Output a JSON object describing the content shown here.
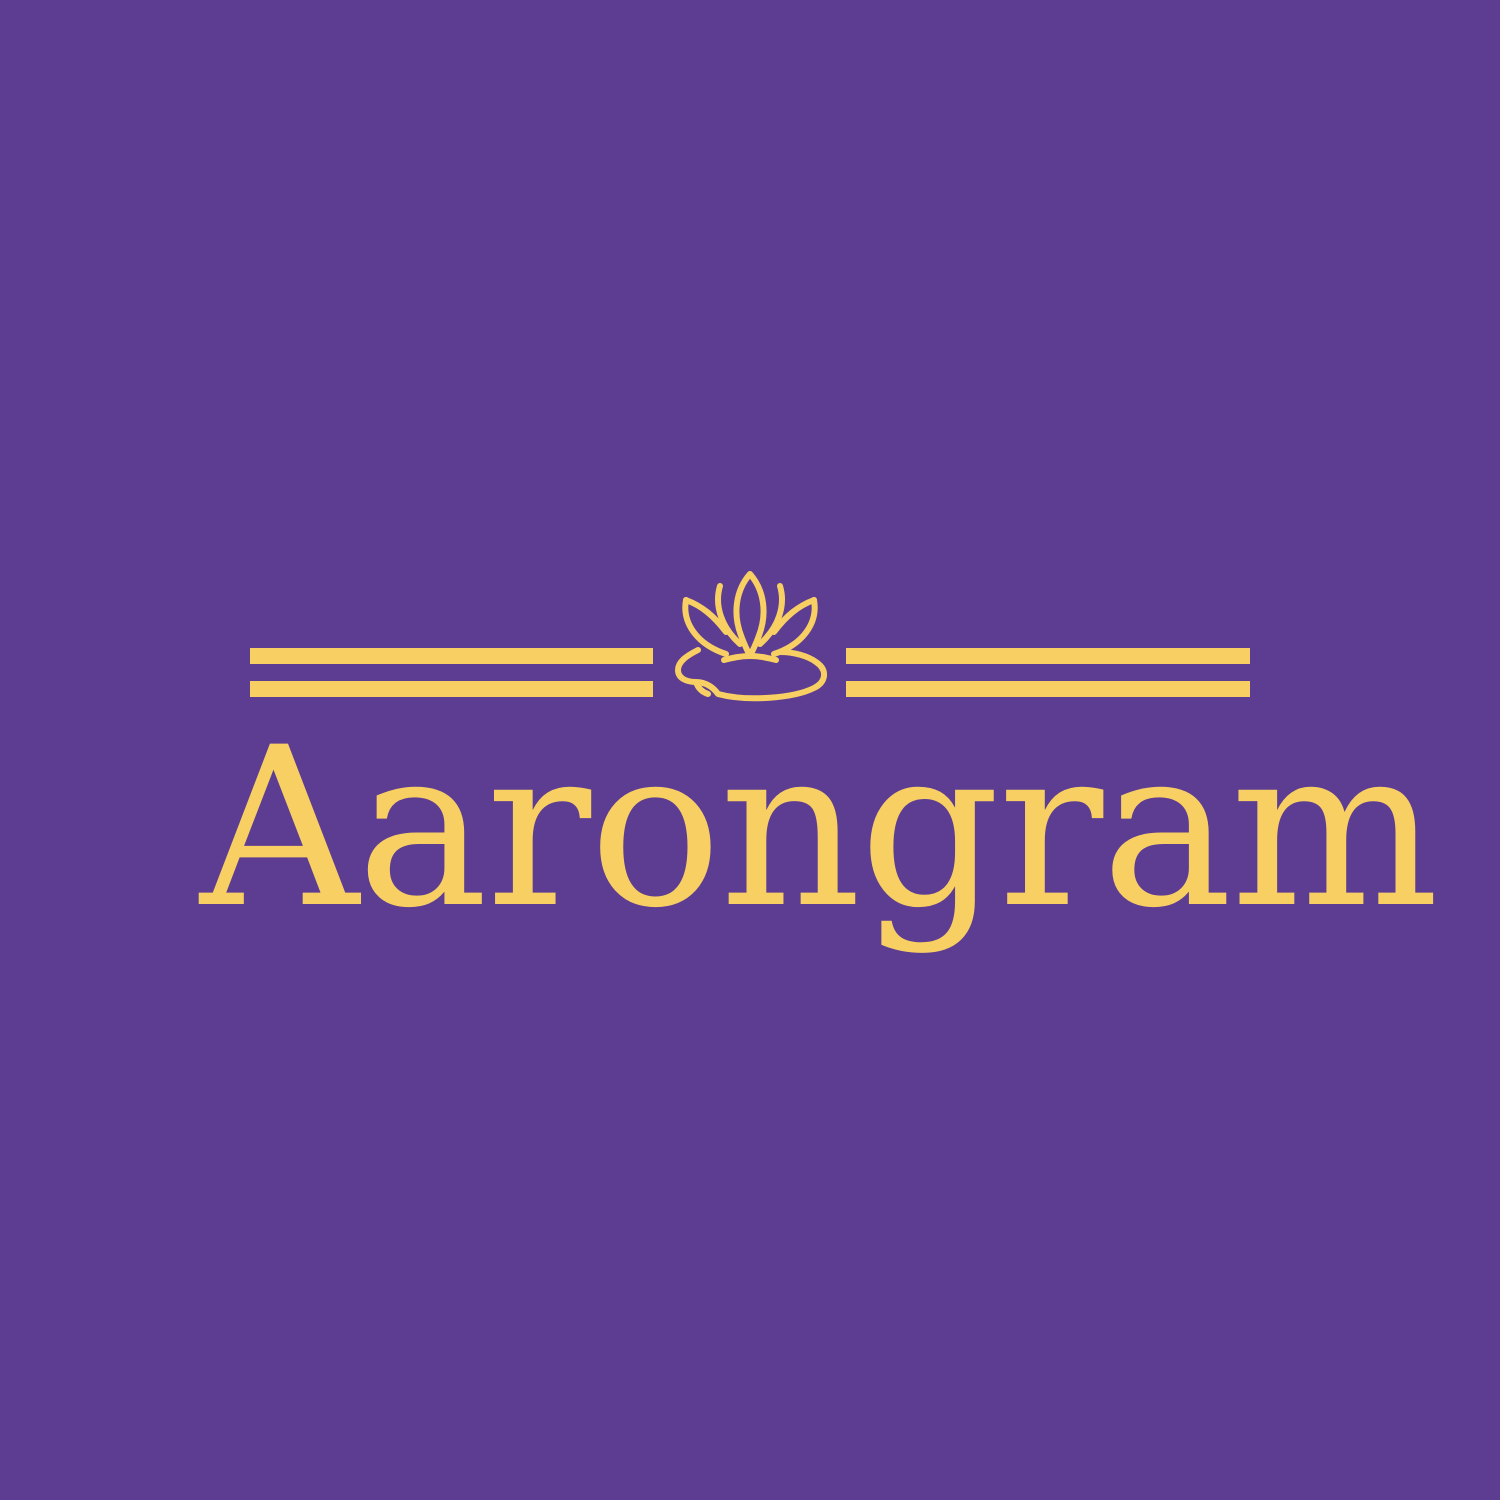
{
  "brand": {
    "name": "Aarongram"
  },
  "icons": {
    "emblem": "lotus-icon"
  },
  "colors": {
    "background": "#5d3d92",
    "accent": "#f8cf63"
  }
}
